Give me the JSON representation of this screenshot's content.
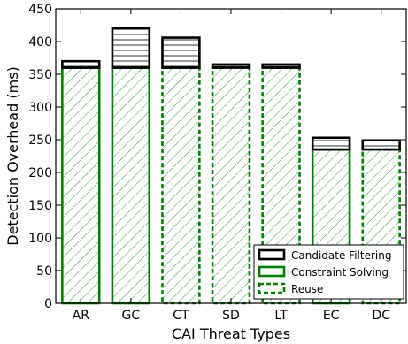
{
  "chart_data": {
    "type": "bar",
    "stacked": true,
    "title": "",
    "xlabel": "CAI Threat Types",
    "ylabel": "Detection Overhead (ms)",
    "ylim": [
      0,
      450
    ],
    "yticks": [
      0,
      50,
      100,
      150,
      200,
      250,
      300,
      350,
      400,
      450
    ],
    "categories": [
      "AR",
      "GC",
      "CT",
      "SD",
      "LT",
      "EC",
      "DC"
    ],
    "series": [
      {
        "name": "Constraint Solving",
        "values": [
          360,
          360,
          0,
          0,
          0,
          235,
          0
        ],
        "color": "#008000",
        "style": "solid"
      },
      {
        "name": "Reuse",
        "values": [
          0,
          0,
          360,
          360,
          360,
          0,
          235
        ],
        "color": "#008000",
        "style": "dashed"
      },
      {
        "name": "Candidate Filtering",
        "values": [
          10,
          60,
          46,
          5,
          5,
          18,
          14
        ],
        "color": "#000000",
        "style": "solid"
      }
    ],
    "legend": {
      "placement": "bottom-right",
      "order": [
        "Candidate Filtering",
        "Constraint Solving",
        "Reuse"
      ]
    },
    "grid": false
  }
}
